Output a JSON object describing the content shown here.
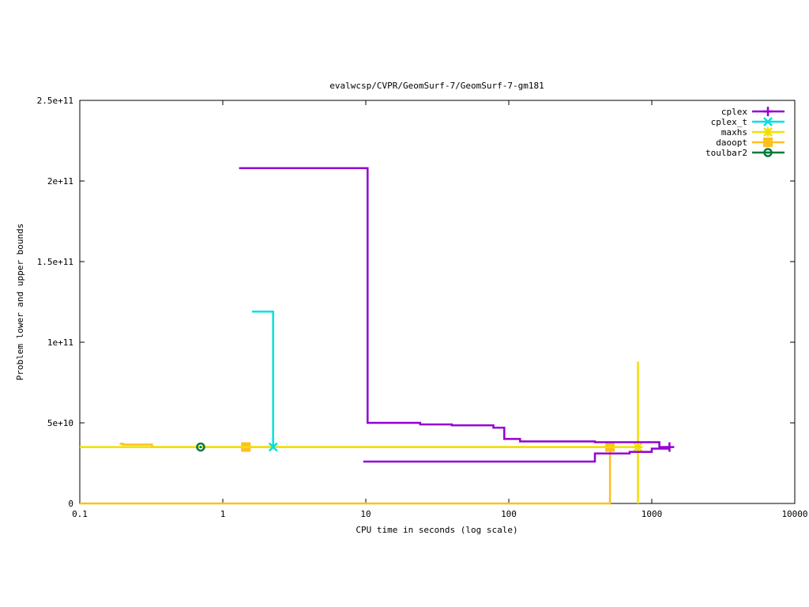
{
  "chart_data": {
    "type": "line",
    "title": "evalwcsp/CVPR/GeomSurf-7/GeomSurf-7-gm181",
    "xlabel": "CPU time in seconds (log scale)",
    "ylabel": "Problem lower and upper bounds",
    "xscale": "log",
    "xlim": [
      0.1,
      10000
    ],
    "ylim": [
      0,
      250000000000
    ],
    "xticks": [
      {
        "value": 0.1,
        "label": "0.1"
      },
      {
        "value": 1,
        "label": "1"
      },
      {
        "value": 10,
        "label": "10"
      },
      {
        "value": 100,
        "label": "100"
      },
      {
        "value": 1000,
        "label": "1000"
      },
      {
        "value": 10000,
        "label": "10000"
      }
    ],
    "yticks": [
      {
        "value": 0,
        "label": "0"
      },
      {
        "value": 50000000000,
        "label": "5e+10"
      },
      {
        "value": 100000000000,
        "label": "1e+11"
      },
      {
        "value": 150000000000,
        "label": "1.5e+11"
      },
      {
        "value": 200000000000,
        "label": "2e+11"
      },
      {
        "value": 250000000000,
        "label": "2.5e+11"
      }
    ],
    "legend_position": "top-right",
    "series": [
      {
        "name": "cplex",
        "color": "#9400d3",
        "marker": "plus",
        "upper": [
          [
            1.3,
            208000000000
          ],
          [
            10.3,
            208000000000
          ],
          [
            10.3,
            50000000000
          ],
          [
            24,
            50000000000
          ],
          [
            24,
            49000000000
          ],
          [
            40,
            49000000000
          ],
          [
            40,
            48500000000
          ],
          [
            78,
            48500000000
          ],
          [
            78,
            47000000000
          ],
          [
            93,
            47000000000
          ],
          [
            93,
            40000000000
          ],
          [
            120,
            40000000000
          ],
          [
            120,
            38500000000
          ],
          [
            400,
            38500000000
          ],
          [
            400,
            38000000000
          ],
          [
            1130,
            38000000000
          ],
          [
            1130,
            35000000000
          ],
          [
            1350,
            35000000000
          ]
        ],
        "lower": [
          [
            9.6,
            26000000000
          ],
          [
            400,
            26000000000
          ],
          [
            400,
            31000000000
          ],
          [
            700,
            31000000000
          ],
          [
            700,
            32000000000
          ],
          [
            1000,
            32000000000
          ],
          [
            1000,
            34000000000
          ],
          [
            1350,
            34000000000
          ]
        ],
        "markers": [
          [
            1330,
            35000000000
          ]
        ]
      },
      {
        "name": "cplex_t",
        "color": "#00e0e0",
        "marker": "cross",
        "upper": [
          [
            1.6,
            119000000000
          ],
          [
            2.25,
            119000000000
          ],
          [
            2.25,
            35000000000
          ]
        ],
        "lower": [],
        "markers": [
          [
            2.25,
            35000000000
          ]
        ]
      },
      {
        "name": "maxhs",
        "color": "#f0e000",
        "marker": "star",
        "upper": [
          [
            0.1,
            35000000000
          ],
          [
            800,
            35000000000
          ]
        ],
        "lower": [
          [
            800,
            88000000000
          ],
          [
            800,
            0
          ]
        ],
        "markers": [
          [
            800,
            35000000000
          ]
        ]
      },
      {
        "name": "daoopt",
        "color": "#ffbf1f",
        "marker": "square",
        "upper": [
          [
            0.19,
            37000000000
          ],
          [
            0.2,
            37000000000
          ],
          [
            0.2,
            36500000000
          ],
          [
            0.32,
            36500000000
          ],
          [
            0.32,
            35000000000
          ],
          [
            510,
            35000000000
          ]
        ],
        "lower": [
          [
            0.1,
            0
          ],
          [
            510,
            0
          ],
          [
            510,
            35000000000
          ]
        ],
        "markers": [
          [
            1.45,
            35000000000
          ],
          [
            510,
            35000000000
          ]
        ]
      },
      {
        "name": "toulbar2",
        "color": "#007a3d",
        "marker": "circle",
        "upper": [],
        "lower": [],
        "markers": [
          [
            0.7,
            35000000000
          ]
        ]
      }
    ]
  }
}
